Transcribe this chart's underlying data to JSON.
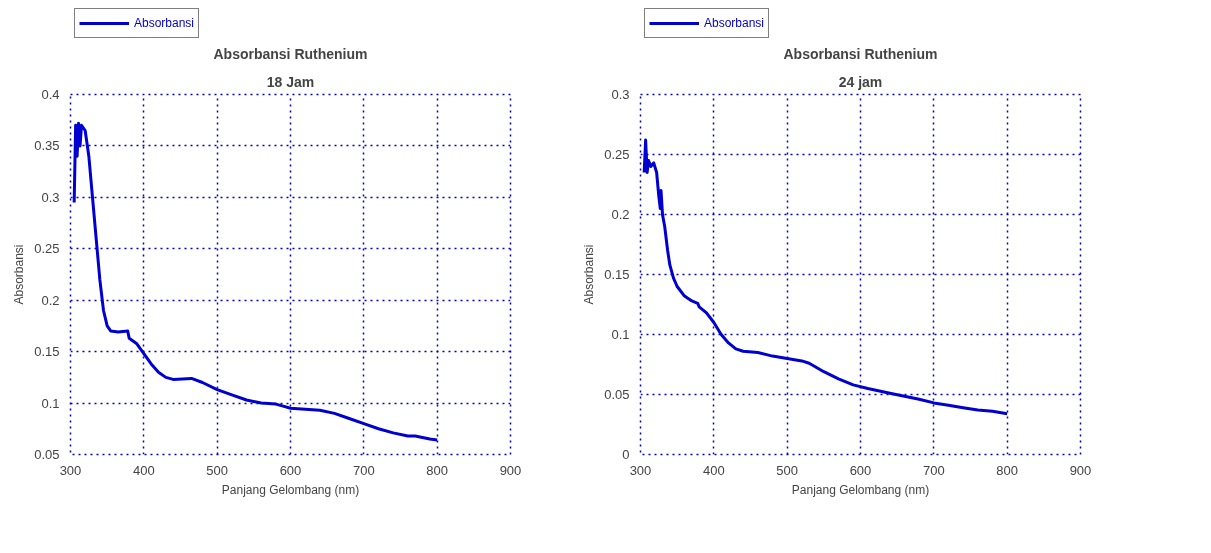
{
  "chart_data": [
    {
      "type": "line",
      "title": "Absorbansi Ruthenium",
      "subtitle": "18 Jam",
      "xlabel": "Panjang Gelombang (nm)",
      "ylabel": "Absorbansi",
      "xlim": [
        300,
        900
      ],
      "xticks": [
        300,
        400,
        500,
        600,
        700,
        800,
        900
      ],
      "ylim": [
        0.05,
        0.4
      ],
      "yticks": [
        0.05,
        0.1,
        0.15,
        0.2,
        0.25,
        0.3,
        0.35,
        0.4
      ],
      "grid": true,
      "legend": "top left",
      "line_style": "solid",
      "series": [
        {
          "name": "Absorbansi",
          "color": "#0000d0",
          "x": [
            305,
            307,
            309,
            311,
            313,
            315,
            320,
            325,
            330,
            335,
            340,
            345,
            350,
            355,
            365,
            378,
            380,
            390,
            400,
            410,
            420,
            430,
            440,
            465,
            480,
            500,
            520,
            540,
            560,
            580,
            590,
            600,
            620,
            640,
            660,
            680,
            700,
            720,
            740,
            760,
            770,
            790,
            800
          ],
          "values": [
            0.295,
            0.37,
            0.34,
            0.372,
            0.35,
            0.37,
            0.365,
            0.34,
            0.3,
            0.26,
            0.22,
            0.19,
            0.175,
            0.17,
            0.169,
            0.17,
            0.163,
            0.158,
            0.148,
            0.138,
            0.13,
            0.125,
            0.123,
            0.124,
            0.12,
            0.113,
            0.108,
            0.103,
            0.1,
            0.099,
            0.097,
            0.095,
            0.094,
            0.093,
            0.09,
            0.085,
            0.08,
            0.075,
            0.071,
            0.068,
            0.068,
            0.065,
            0.064
          ]
        }
      ]
    },
    {
      "type": "line",
      "title": "Absorbansi Ruthenium",
      "subtitle": "24 jam",
      "xlabel": "Panjang Gelombang (nm)",
      "ylabel": "Absorbansi",
      "xlim": [
        300,
        900
      ],
      "xticks": [
        300,
        400,
        500,
        600,
        700,
        800,
        900
      ],
      "ylim": [
        0,
        0.3
      ],
      "yticks": [
        0,
        0.05,
        0.1,
        0.15,
        0.2,
        0.25,
        0.3
      ],
      "grid": true,
      "legend": "top left",
      "line_style": "solid",
      "series": [
        {
          "name": "Absorbansi",
          "color": "#0000d0",
          "x": [
            305,
            307,
            309,
            311,
            314,
            318,
            322,
            325,
            327,
            328,
            330,
            333,
            337,
            340,
            345,
            350,
            360,
            370,
            378,
            380,
            390,
            400,
            410,
            420,
            430,
            440,
            460,
            480,
            500,
            520,
            530,
            550,
            570,
            590,
            610,
            640,
            680,
            700,
            720,
            740,
            760,
            780,
            800
          ],
          "values": [
            0.235,
            0.262,
            0.235,
            0.245,
            0.24,
            0.243,
            0.235,
            0.215,
            0.205,
            0.22,
            0.2,
            0.19,
            0.17,
            0.158,
            0.147,
            0.14,
            0.132,
            0.128,
            0.126,
            0.123,
            0.118,
            0.11,
            0.1,
            0.093,
            0.088,
            0.086,
            0.085,
            0.082,
            0.08,
            0.078,
            0.076,
            0.069,
            0.063,
            0.058,
            0.055,
            0.051,
            0.046,
            0.043,
            0.041,
            0.039,
            0.037,
            0.036,
            0.034
          ]
        }
      ]
    }
  ]
}
